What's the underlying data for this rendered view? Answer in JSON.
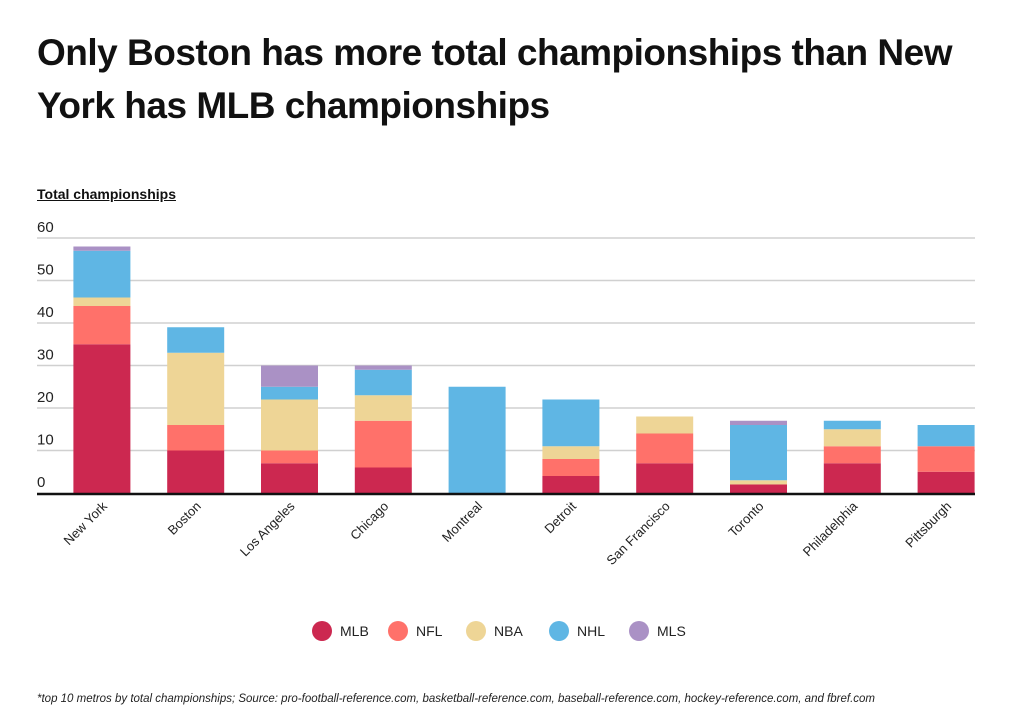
{
  "title": "Only Boston has more total championships than New York has MLB championships",
  "footer": "*top 10 metros by total championships; Source: pro-football-reference.com, basketball-reference.com, baseball-reference.com, hockey-reference.com, and fbref.com",
  "chart_data": {
    "type": "bar",
    "stacked": true,
    "title": "Only Boston has more total championships than New York has MLB championships",
    "ylabel": "Total championships",
    "xlabel": "",
    "ylim": [
      0,
      60
    ],
    "yticks": [
      0,
      10,
      20,
      30,
      40,
      50,
      60
    ],
    "grid": true,
    "legend": "bottom",
    "categories": [
      "New York",
      "Boston",
      "Los Angeles",
      "Chicago",
      "Montreal",
      "Detroit",
      "San Francisco",
      "Toronto",
      "Philadelphia",
      "Pittsburgh"
    ],
    "series": [
      {
        "name": "MLB",
        "color": "#cc2850",
        "values": [
          35,
          10,
          7,
          6,
          0,
          4,
          7,
          2,
          7,
          5
        ]
      },
      {
        "name": "NFL",
        "color": "#ff716a",
        "values": [
          9,
          6,
          3,
          11,
          0,
          4,
          7,
          0,
          4,
          6
        ]
      },
      {
        "name": "NBA",
        "color": "#eed596",
        "values": [
          2,
          17,
          12,
          6,
          0,
          3,
          4,
          1,
          4,
          0
        ]
      },
      {
        "name": "NHL",
        "color": "#5fb6e4",
        "values": [
          11,
          6,
          3,
          6,
          25,
          11,
          0,
          13,
          2,
          5
        ]
      },
      {
        "name": "MLS",
        "color": "#aa91c5",
        "values": [
          1,
          0,
          5,
          1,
          0,
          0,
          0,
          1,
          0,
          0
        ]
      }
    ]
  }
}
